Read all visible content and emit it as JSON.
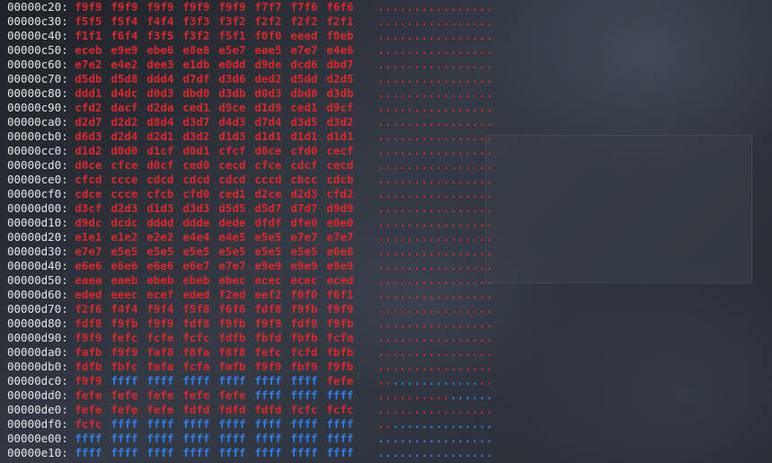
{
  "colors": {
    "red": "#e0262a",
    "blue": "#2f7ff0",
    "address": "#e4e6ea",
    "background": "#2a2f37"
  },
  "overlay": {
    "label": ""
  },
  "rows": [
    {
      "addr": "00000c20:",
      "words": [
        "f9f9",
        "f9f9",
        "f9f9",
        "f9f9",
        "f9f9",
        "f7f7",
        "f7f6",
        "f6f6"
      ],
      "ascii": "................"
    },
    {
      "addr": "00000c30:",
      "words": [
        "f5f5",
        "f5f4",
        "f4f4",
        "f3f3",
        "f3f2",
        "f2f2",
        "f2f2",
        "f2f1"
      ],
      "ascii": "................"
    },
    {
      "addr": "00000c40:",
      "words": [
        "f1f1",
        "f6f4",
        "f3f5",
        "f3f2",
        "f5f1",
        "f0f0",
        "eeed",
        "f0eb"
      ],
      "ascii": "................"
    },
    {
      "addr": "00000c50:",
      "words": [
        "eceb",
        "e9e9",
        "ebe6",
        "e8e8",
        "e5e7",
        "eae5",
        "e7e7",
        "e4e6"
      ],
      "ascii": "................"
    },
    {
      "addr": "00000c60:",
      "words": [
        "e7e2",
        "e4e2",
        "dee3",
        "e1db",
        "e0dd",
        "d9de",
        "dcd6",
        "dbd7"
      ],
      "ascii": "................"
    },
    {
      "addr": "00000c70:",
      "words": [
        "d5db",
        "d5d8",
        "ddd4",
        "d7df",
        "d3d6",
        "ded2",
        "d5dd",
        "d2d5"
      ],
      "ascii": "................"
    },
    {
      "addr": "00000c80:",
      "words": [
        "ddd1",
        "d4dc",
        "d0d3",
        "dbd0",
        "d3db",
        "d0d3",
        "dbd0",
        "d3db"
      ],
      "ascii": "................"
    },
    {
      "addr": "00000c90:",
      "words": [
        "cfd2",
        "dacf",
        "d2da",
        "ced1",
        "d9ce",
        "d1d9",
        "ced1",
        "d9cf"
      ],
      "ascii": "................"
    },
    {
      "addr": "00000ca0:",
      "words": [
        "d2d7",
        "d2d2",
        "d8d4",
        "d3d7",
        "d4d3",
        "d7d4",
        "d3d5",
        "d3d2"
      ],
      "ascii": "................"
    },
    {
      "addr": "00000cb0:",
      "words": [
        "d6d3",
        "d2d4",
        "d2d1",
        "d3d2",
        "d1d3",
        "d1d1",
        "d1d1",
        "d1d1"
      ],
      "ascii": "................"
    },
    {
      "addr": "00000cc0:",
      "words": [
        "d1d2",
        "d0d0",
        "d1cf",
        "d0d1",
        "cfcf",
        "d0ce",
        "cfd0",
        "cecf"
      ],
      "ascii": "................"
    },
    {
      "addr": "00000cd0:",
      "words": [
        "d0ce",
        "cfce",
        "d0cf",
        "ced0",
        "cecd",
        "cfce",
        "cdcf",
        "cecd"
      ],
      "ascii": "................"
    },
    {
      "addr": "00000ce0:",
      "words": [
        "cfcd",
        "ccce",
        "cdcd",
        "cdcd",
        "cdcd",
        "cccd",
        "cbcc",
        "cdcb"
      ],
      "ascii": "................"
    },
    {
      "addr": "00000cf0:",
      "words": [
        "cdce",
        "ccce",
        "cfcb",
        "cfd0",
        "ced1",
        "d2ce",
        "d2d3",
        "cfd2"
      ],
      "ascii": "................"
    },
    {
      "addr": "00000d00:",
      "words": [
        "d3cf",
        "d2d3",
        "d1d3",
        "d3d3",
        "d5d5",
        "d5d7",
        "d7d7",
        "d9d9"
      ],
      "ascii": "................"
    },
    {
      "addr": "00000d10:",
      "words": [
        "d9dc",
        "dcdc",
        "dddd",
        "ddde",
        "dede",
        "dfdf",
        "dfe0",
        "e0e0"
      ],
      "ascii": "................"
    },
    {
      "addr": "00000d20:",
      "words": [
        "e1e1",
        "e1e2",
        "e2e2",
        "e4e4",
        "e4e5",
        "e5e5",
        "e7e7",
        "e7e7"
      ],
      "ascii": "................"
    },
    {
      "addr": "00000d30:",
      "words": [
        "e7e7",
        "e5e5",
        "e5e5",
        "e5e5",
        "e5e5",
        "e5e5",
        "e5e5",
        "e6e6"
      ],
      "ascii": "................"
    },
    {
      "addr": "00000d40:",
      "words": [
        "e6e6",
        "e6e6",
        "e6e6",
        "e6e7",
        "e7e7",
        "e9e9",
        "e9e9",
        "e9e9"
      ],
      "ascii": "................"
    },
    {
      "addr": "00000d50:",
      "words": [
        "eaea",
        "eaeb",
        "ebeb",
        "ebeb",
        "ebec",
        "ecec",
        "ecec",
        "eced"
      ],
      "ascii": "................"
    },
    {
      "addr": "00000d60:",
      "words": [
        "eded",
        "eeec",
        "ecef",
        "eded",
        "f2ed",
        "eef2",
        "f0f0",
        "f6f1"
      ],
      "ascii": "................"
    },
    {
      "addr": "00000d70:",
      "words": [
        "f2f6",
        "f4f4",
        "f9f4",
        "f5f8",
        "f6f6",
        "fdf8",
        "f9fb",
        "f9f9"
      ],
      "ascii": "................"
    },
    {
      "addr": "00000d80:",
      "words": [
        "fdf8",
        "f9fb",
        "f9f9",
        "fdf8",
        "f9fb",
        "f9f9",
        "fdf8",
        "f9fb"
      ],
      "ascii": "................"
    },
    {
      "addr": "00000d90:",
      "words": [
        "f9f9",
        "fefc",
        "fcfe",
        "fcfc",
        "fdfb",
        "fbfd",
        "fbfb",
        "fcfa"
      ],
      "ascii": "................"
    },
    {
      "addr": "00000da0:",
      "words": [
        "fafb",
        "f9f9",
        "faf8",
        "f8fa",
        "f8f8",
        "fefc",
        "fcfd",
        "fbfb"
      ],
      "ascii": "................"
    },
    {
      "addr": "00000db0:",
      "words": [
        "fdfb",
        "fbfc",
        "fafa",
        "fcfa",
        "fafb",
        "f9f9",
        "fbf9",
        "f9fb"
      ],
      "ascii": "................"
    },
    {
      "addr": "00000dc0:",
      "words": [
        "f9f9",
        "ffff",
        "ffff",
        "ffff",
        "ffff",
        "ffff",
        "ffff",
        "fefe"
      ],
      "ascii": "................"
    },
    {
      "addr": "00000dd0:",
      "words": [
        "fefe",
        "fefe",
        "fefe",
        "fefe",
        "fefe",
        "ffff",
        "ffff",
        "ffff"
      ],
      "ascii": "................"
    },
    {
      "addr": "00000de0:",
      "words": [
        "fefe",
        "fefe",
        "fefe",
        "fdfd",
        "fdfd",
        "fdfd",
        "fcfc",
        "fcfc"
      ],
      "ascii": "................"
    },
    {
      "addr": "00000df0:",
      "words": [
        "fcfc",
        "ffff",
        "ffff",
        "ffff",
        "ffff",
        "ffff",
        "ffff",
        "ffff"
      ],
      "ascii": "................"
    },
    {
      "addr": "00000e00:",
      "words": [
        "ffff",
        "ffff",
        "ffff",
        "ffff",
        "ffff",
        "ffff",
        "ffff",
        "ffff"
      ],
      "ascii": "................"
    },
    {
      "addr": "00000e10:",
      "words": [
        "ffff",
        "ffff",
        "ffff",
        "ffff",
        "ffff",
        "ffff",
        "ffff",
        "ffff"
      ],
      "ascii": "................"
    }
  ]
}
